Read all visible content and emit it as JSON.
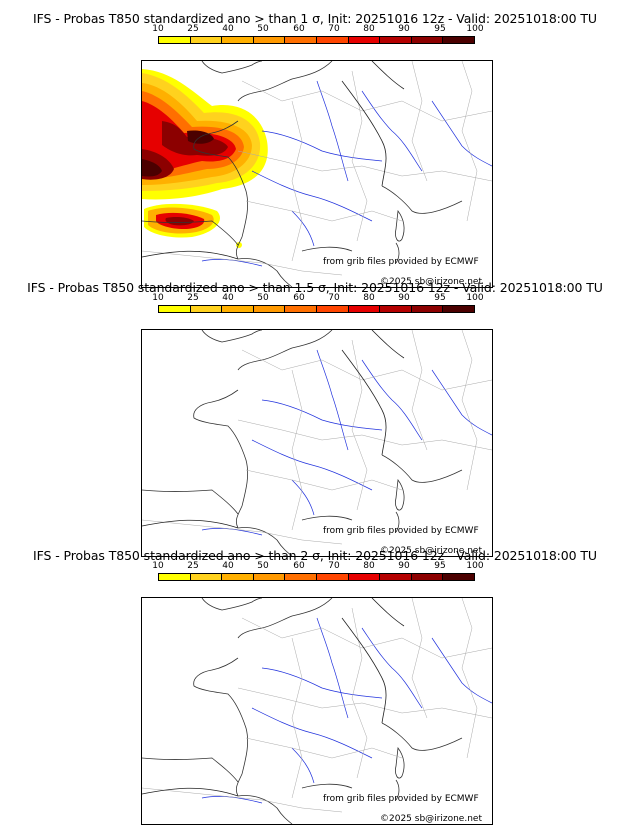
{
  "legend": {
    "ticks": [
      "10",
      "25",
      "40",
      "50",
      "60",
      "70",
      "80",
      "90",
      "95",
      "100"
    ],
    "colors": [
      "#ffff00",
      "#ffd21e",
      "#ffb000",
      "#ff9900",
      "#ff6f00",
      "#ff4500",
      "#e60000",
      "#b40000",
      "#8c0000",
      "#4b0000"
    ]
  },
  "panels": [
    {
      "title": "IFS - Probas T850  standardized ano > than 1 σ, Init: 20251016 12z - Valid: 20251018:00 TU",
      "credit_source": "from grib files provided by ECMWF",
      "credit_copyright": "©2025 sb@irizone.net"
    },
    {
      "title": "IFS - Probas T850  standardized ano > than 1.5 σ, Init: 20251016 12z - Valid: 20251018:00 TU",
      "credit_source": "from grib files provided by ECMWF",
      "credit_copyright": "©2025 sb@irizone.net"
    },
    {
      "title": "IFS - Probas T850  standardized ano > than 2 σ, Init: 20251016 12z - Valid: 20251018:00 TU",
      "credit_source": "from grib files provided by ECMWF",
      "credit_copyright": "©2025 sb@irizone.net"
    }
  ]
}
